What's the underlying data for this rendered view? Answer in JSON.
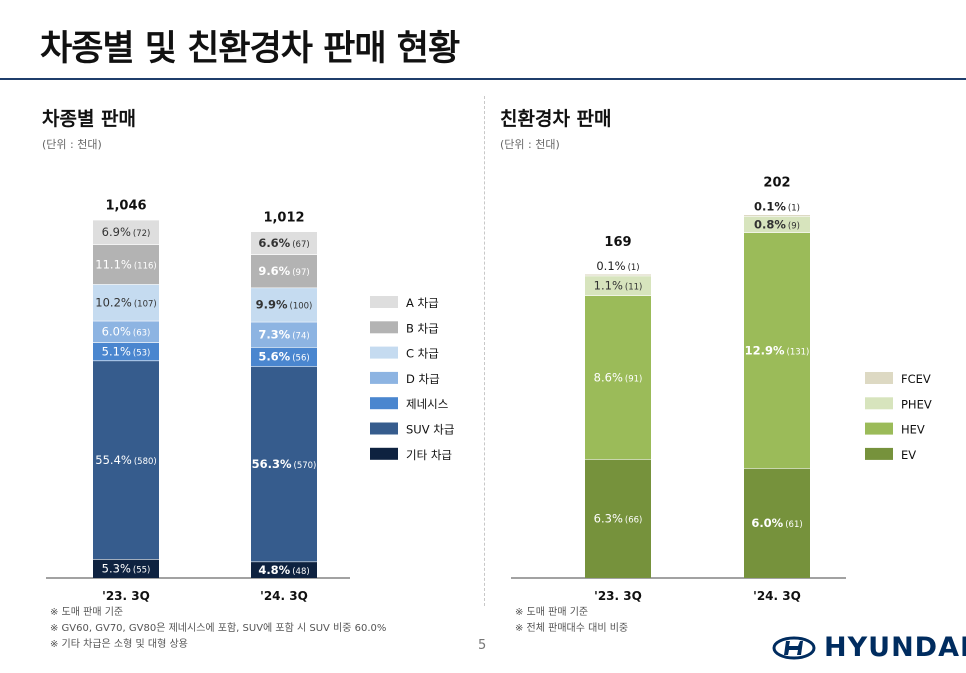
{
  "page": {
    "title": "차종별 및 친환경차 판매 현황",
    "page_number": "5",
    "brand": "HYUNDAI"
  },
  "left": {
    "title": "차종별 판매",
    "unit": "(단위 : 천대)",
    "footnotes": [
      "※ 도매 판매 기준",
      "※ GV60, GV70, GV80은 제네시스에 포함, SUV에 포함 시 SUV 비중 60.0%",
      "※ 기타 차급은 소형 및 대형 상용"
    ]
  },
  "right": {
    "title": "친환경차 판매",
    "unit": "(단위 : 천대)",
    "footnotes": [
      "※ 도매 판매 기준",
      "※ 전체 판매대수 대비 비중"
    ]
  },
  "chart_data": [
    {
      "type": "bar",
      "stacked": true,
      "title": "차종별 판매",
      "unit": "천대",
      "categories": [
        "'23. 3Q",
        "'24. 3Q"
      ],
      "totals": [
        "1,046",
        "1,012"
      ],
      "legend_position": "right",
      "series": [
        {
          "name": "기타 차급",
          "color": "#0e2240",
          "values": [
            55,
            48
          ],
          "pct": [
            "5.3%",
            "4.8%"
          ],
          "counts": [
            "(55)",
            "(48)"
          ]
        },
        {
          "name": "SUV 차급",
          "color": "#365c8d",
          "values": [
            580,
            570
          ],
          "pct": [
            "55.4%",
            "56.3%"
          ],
          "counts": [
            "(580)",
            "(570)"
          ]
        },
        {
          "name": "제네시스",
          "color": "#4a86cf",
          "values": [
            53,
            56
          ],
          "pct": [
            "5.1%",
            "5.6%"
          ],
          "counts": [
            "(53)",
            "(56)"
          ]
        },
        {
          "name": "D 차급",
          "color": "#8db4e2",
          "values": [
            63,
            74
          ],
          "pct": [
            "6.0%",
            "7.3%"
          ],
          "counts": [
            "(63)",
            "(74)"
          ]
        },
        {
          "name": "C 차급",
          "color": "#c5dbf0",
          "values": [
            107,
            100
          ],
          "pct": [
            "10.2%",
            "9.9%"
          ],
          "counts": [
            "(107)",
            "(100)"
          ]
        },
        {
          "name": "B 차급",
          "color": "#b3b3b3",
          "values": [
            116,
            97
          ],
          "pct": [
            "11.1%",
            "9.6%"
          ],
          "counts": [
            "(116)",
            "(97)"
          ]
        },
        {
          "name": "A 차급",
          "color": "#dedede",
          "values": [
            72,
            67
          ],
          "pct": [
            "6.9%",
            "6.6%"
          ],
          "counts": [
            "(72)",
            "(67)"
          ]
        }
      ]
    },
    {
      "type": "bar",
      "stacked": true,
      "title": "친환경차 판매",
      "unit": "천대",
      "categories": [
        "'23. 3Q",
        "'24. 3Q"
      ],
      "totals": [
        "169",
        "202"
      ],
      "legend_position": "right",
      "series": [
        {
          "name": "EV",
          "color": "#76923c",
          "values": [
            66,
            61
          ],
          "pct": [
            "6.3%",
            "6.0%"
          ],
          "counts": [
            "(66)",
            "(61)"
          ]
        },
        {
          "name": "HEV",
          "color": "#9bbb59",
          "values": [
            91,
            131
          ],
          "pct": [
            "8.6%",
            "12.9%"
          ],
          "counts": [
            "(91)",
            "(131)"
          ]
        },
        {
          "name": "PHEV",
          "color": "#d7e4bd",
          "values": [
            11,
            9
          ],
          "pct": [
            "1.1%",
            "0.8%"
          ],
          "counts": [
            "(11)",
            "(9)"
          ]
        },
        {
          "name": "FCEV",
          "color": "#ddd9c3",
          "values": [
            1,
            1
          ],
          "pct": [
            "0.1%",
            "0.1%"
          ],
          "counts": [
            "(1)",
            "(1)"
          ]
        }
      ]
    }
  ]
}
